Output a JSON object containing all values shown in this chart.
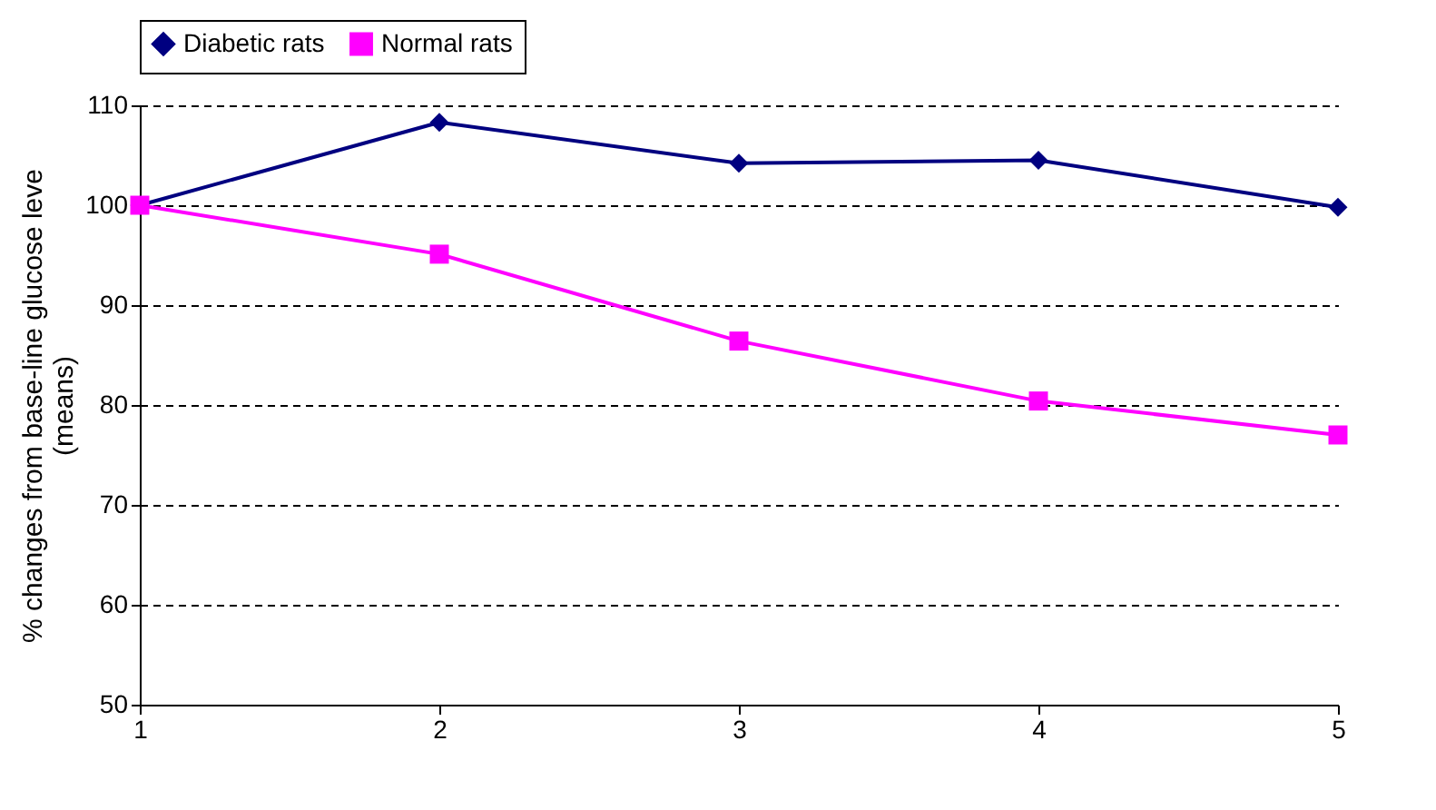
{
  "chart_data": {
    "type": "line",
    "ylabel": "% changes from  base-line glucose leve\n(means)",
    "x": [
      1,
      2,
      3,
      4,
      5
    ],
    "series": [
      {
        "name": "Diabetic rats",
        "color": "#000080",
        "marker": "diamond",
        "values": [
          100,
          108.3,
          104.2,
          104.5,
          99.8
        ]
      },
      {
        "name": "Normal rats",
        "color": "#ff00ff",
        "marker": "square",
        "values": [
          100,
          95.1,
          86.4,
          80.4,
          77
        ]
      }
    ],
    "xlim": [
      1,
      5
    ],
    "xticks": [
      1,
      2,
      3,
      4,
      5
    ],
    "ylim": [
      50,
      110
    ],
    "yticks": [
      50,
      60,
      70,
      80,
      90,
      100,
      110
    ],
    "grid": "y",
    "line_style": "solid",
    "legend": "top"
  }
}
